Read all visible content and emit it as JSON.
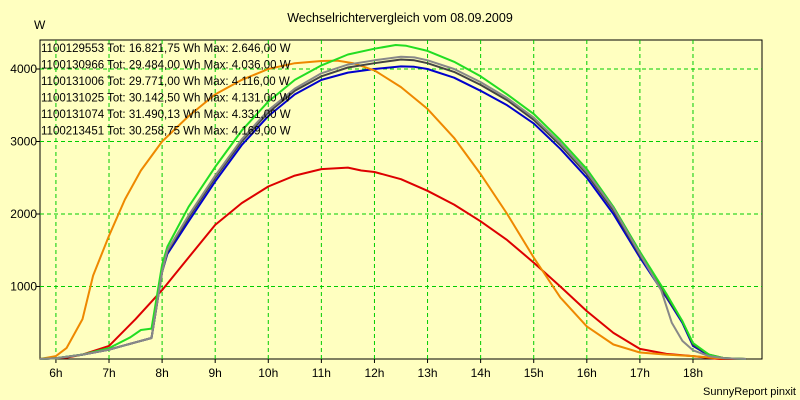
{
  "chart_data": {
    "type": "line",
    "title": "Wechselrichtervergleich vom 08.09.2009",
    "ylabel": "W",
    "xlabel": "",
    "footer": "SunnyReport pinxit",
    "xlim": [
      5.7,
      19.3
    ],
    "ylim": [
      0,
      4400
    ],
    "x_ticks": [
      {
        "value": 6,
        "label": "6h"
      },
      {
        "value": 7,
        "label": "7h"
      },
      {
        "value": 8,
        "label": "8h"
      },
      {
        "value": 9,
        "label": "9h"
      },
      {
        "value": 10,
        "label": "10h"
      },
      {
        "value": 11,
        "label": "11h"
      },
      {
        "value": 12,
        "label": "12h"
      },
      {
        "value": 13,
        "label": "13h"
      },
      {
        "value": 14,
        "label": "14h"
      },
      {
        "value": 15,
        "label": "15h"
      },
      {
        "value": 16,
        "label": "16h"
      },
      {
        "value": 17,
        "label": "17h"
      },
      {
        "value": 18,
        "label": "18h"
      }
    ],
    "y_ticks": [
      {
        "value": 1000,
        "label": "1000"
      },
      {
        "value": 2000,
        "label": "2000"
      },
      {
        "value": 3000,
        "label": "3000"
      },
      {
        "value": 4000,
        "label": "4000"
      }
    ],
    "grid": true,
    "series": [
      {
        "name": "1100129553",
        "legend": "1100129553 Tot: 16.821,75 Wh Max: 2.646,00 W",
        "color": "#dd0000",
        "x": [
          5.7,
          6.2,
          6.5,
          7.0,
          7.5,
          8.0,
          8.5,
          9.0,
          9.5,
          10.0,
          10.5,
          11.0,
          11.5,
          11.75,
          12.0,
          12.5,
          13.0,
          13.5,
          14.0,
          14.5,
          15.0,
          15.5,
          16.0,
          16.5,
          17.0,
          17.5,
          18.0,
          18.3,
          18.5,
          19.0
        ],
        "y": [
          0,
          20,
          60,
          180,
          550,
          950,
          1400,
          1850,
          2150,
          2380,
          2530,
          2620,
          2640,
          2600,
          2580,
          2480,
          2320,
          2130,
          1900,
          1640,
          1330,
          1000,
          660,
          360,
          140,
          70,
          40,
          15,
          0,
          0
        ]
      },
      {
        "name": "1100130966",
        "legend": "1100130966 Tot: 29.484,00 Wh Max: 4.036,00 W",
        "color": "#0000cc",
        "x": [
          5.7,
          6.0,
          6.5,
          7.0,
          7.5,
          7.8,
          8.0,
          8.1,
          8.5,
          9.0,
          9.5,
          10.0,
          10.5,
          11.0,
          11.5,
          12.0,
          12.5,
          12.75,
          13.0,
          13.5,
          14.0,
          14.5,
          15.0,
          15.5,
          16.0,
          16.5,
          17.0,
          17.5,
          17.8,
          18.0,
          18.3,
          18.6,
          19.0
        ],
        "y": [
          0,
          10,
          60,
          130,
          230,
          290,
          1200,
          1450,
          1900,
          2450,
          2950,
          3350,
          3650,
          3850,
          3950,
          4000,
          4036,
          4030,
          4000,
          3880,
          3700,
          3500,
          3250,
          2900,
          2500,
          2000,
          1400,
          850,
          500,
          180,
          50,
          10,
          0
        ]
      },
      {
        "name": "1100131006",
        "legend": "1100131006 Tot: 29.771,00 Wh Max: 4.116,00 W",
        "color": "#ee8800",
        "x": [
          5.7,
          6.0,
          6.2,
          6.5,
          6.7,
          7.0,
          7.3,
          7.6,
          8.0,
          8.5,
          9.0,
          9.5,
          10.0,
          10.5,
          11.0,
          11.3,
          11.6,
          12.0,
          12.5,
          13.0,
          13.5,
          14.0,
          14.5,
          15.0,
          15.5,
          16.0,
          16.5,
          17.0,
          17.5,
          18.0,
          18.5,
          19.0
        ],
        "y": [
          0,
          40,
          150,
          550,
          1150,
          1700,
          2200,
          2600,
          3000,
          3350,
          3650,
          3850,
          4000,
          4080,
          4110,
          4116,
          4080,
          3980,
          3750,
          3450,
          3050,
          2550,
          2000,
          1400,
          850,
          450,
          200,
          90,
          60,
          40,
          10,
          0
        ]
      },
      {
        "name": "1100131025",
        "legend": "1100131025 Tot: 30.142,50 Wh Max: 4.131,00 W",
        "color": "#444444",
        "x": [
          5.7,
          6.0,
          6.5,
          7.0,
          7.5,
          7.8,
          8.0,
          8.1,
          8.5,
          9.0,
          9.5,
          10.0,
          10.5,
          11.0,
          11.5,
          12.0,
          12.5,
          12.75,
          13.0,
          13.5,
          14.0,
          14.5,
          15.0,
          15.5,
          16.0,
          16.5,
          17.0,
          17.5,
          17.8,
          18.0,
          18.3,
          18.6,
          19.0
        ],
        "y": [
          0,
          10,
          60,
          130,
          230,
          290,
          1200,
          1480,
          1950,
          2500,
          3000,
          3400,
          3700,
          3900,
          4020,
          4080,
          4131,
          4120,
          4080,
          3960,
          3780,
          3570,
          3300,
          2950,
          2550,
          2050,
          1430,
          870,
          520,
          200,
          60,
          10,
          0
        ]
      },
      {
        "name": "1100131074",
        "legend": "1100131074 Tot: 31.490,13 Wh Max: 4.331,00 W",
        "color": "#22dd22",
        "x": [
          5.7,
          6.0,
          6.5,
          7.0,
          7.4,
          7.6,
          7.8,
          8.0,
          8.1,
          8.5,
          9.0,
          9.5,
          10.0,
          10.5,
          11.0,
          11.5,
          12.0,
          12.4,
          12.6,
          13.0,
          13.5,
          14.0,
          14.5,
          15.0,
          15.5,
          16.0,
          16.5,
          17.0,
          17.5,
          17.8,
          18.0,
          18.3,
          18.6,
          19.0
        ],
        "y": [
          0,
          10,
          60,
          150,
          300,
          400,
          420,
          1300,
          1550,
          2100,
          2650,
          3150,
          3550,
          3850,
          4050,
          4200,
          4280,
          4331,
          4320,
          4250,
          4100,
          3900,
          3650,
          3380,
          3020,
          2620,
          2100,
          1480,
          900,
          520,
          220,
          60,
          10,
          0
        ]
      },
      {
        "name": "1100213451",
        "legend": "1100213451 Tot: 30.258,75 Wh Max: 4.169,00 W",
        "color": "#888888",
        "x": [
          5.7,
          6.0,
          6.5,
          7.0,
          7.5,
          7.8,
          8.0,
          8.1,
          8.5,
          9.0,
          9.5,
          10.0,
          10.5,
          11.0,
          11.5,
          12.0,
          12.5,
          12.75,
          13.0,
          13.5,
          14.0,
          14.5,
          15.0,
          15.5,
          16.0,
          16.5,
          17.0,
          17.4,
          17.6,
          17.8,
          18.0,
          18.3,
          18.6,
          19.0
        ],
        "y": [
          0,
          10,
          60,
          130,
          230,
          290,
          1200,
          1500,
          1980,
          2530,
          3030,
          3430,
          3730,
          3940,
          4060,
          4120,
          4169,
          4160,
          4120,
          4000,
          3820,
          3600,
          3330,
          2980,
          2580,
          2080,
          1450,
          950,
          500,
          250,
          120,
          40,
          10,
          0
        ]
      }
    ]
  }
}
